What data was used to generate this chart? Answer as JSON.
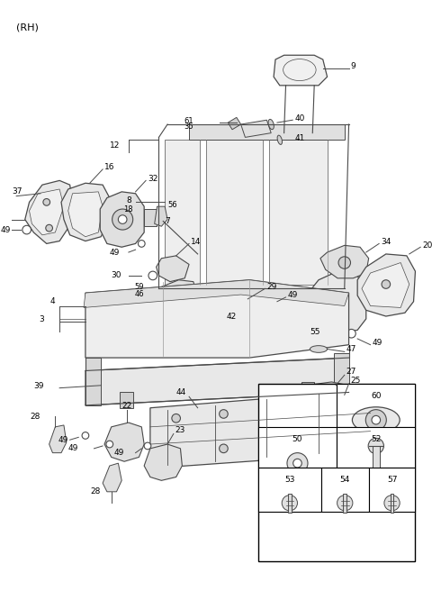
{
  "bg": "#ffffff",
  "lc": "#4a4a4a",
  "tc": "#000000",
  "title": "(RH)",
  "fig_w": 4.8,
  "fig_h": 6.56,
  "dpi": 100
}
